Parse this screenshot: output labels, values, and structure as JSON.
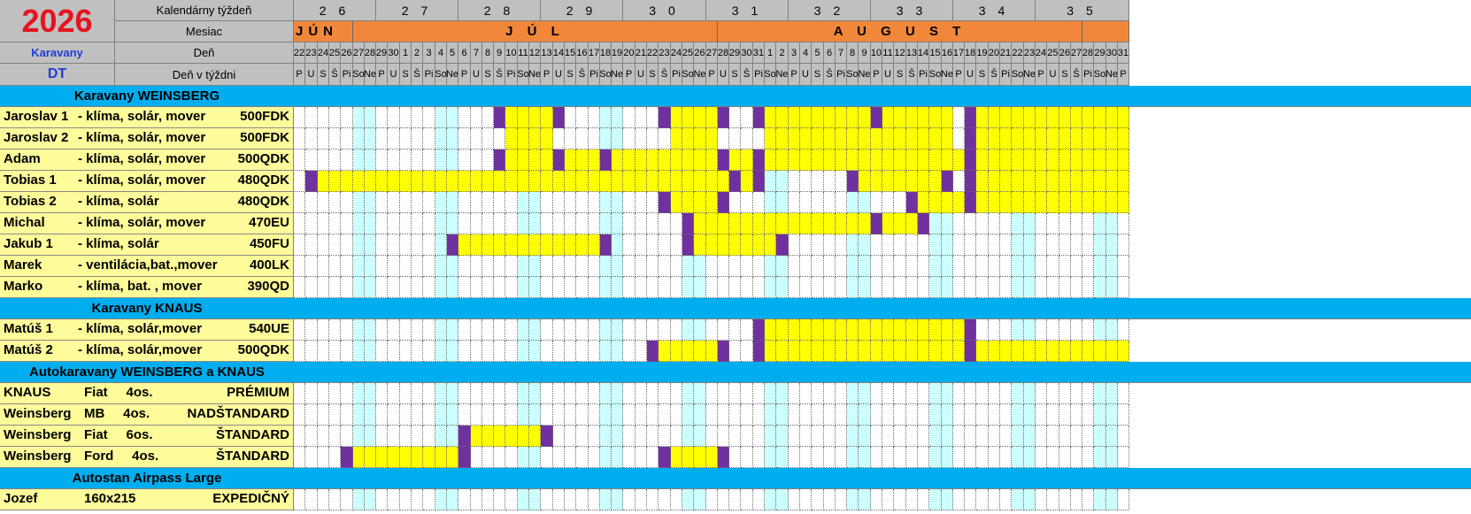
{
  "header": {
    "year": "2026",
    "labels": {
      "week": "Kalendárny týždeň",
      "month": "Mesiac",
      "day": "Deň",
      "weekday": "Deň v týždni",
      "category": "Karavany",
      "brand": "DT"
    }
  },
  "calendar": {
    "start_day": 22,
    "start_weekday_index": 0,
    "day_count": 71,
    "weekday_labels": [
      "P",
      "U",
      "S",
      "Š",
      "Pi",
      "So",
      "Ne"
    ],
    "weeks": [
      {
        "label": "2 6",
        "start": 0,
        "span": 7
      },
      {
        "label": "2 7",
        "start": 7,
        "span": 7
      },
      {
        "label": "2 8",
        "start": 14,
        "span": 7
      },
      {
        "label": "2 9",
        "start": 21,
        "span": 7
      },
      {
        "label": "3 0",
        "start": 28,
        "span": 7
      },
      {
        "label": "3 1",
        "start": 35,
        "span": 7
      },
      {
        "label": "3 2",
        "start": 42,
        "span": 7
      },
      {
        "label": "3 3",
        "start": 49,
        "span": 7
      },
      {
        "label": "3 4",
        "start": 56,
        "span": 7
      },
      {
        "label": "3 5",
        "start": 63,
        "span": 8
      }
    ],
    "months": [
      {
        "label": "JÚN",
        "start": 0,
        "span": 5,
        "align": "left"
      },
      {
        "label": "J Ú L",
        "start": 5,
        "span": 31,
        "align": "center"
      },
      {
        "label": "A U G U S T",
        "start": 36,
        "span": 31,
        "align": "center"
      },
      {
        "label": "",
        "start": 67,
        "span": 4,
        "align": "center"
      }
    ]
  },
  "rows": [
    {
      "type": "section",
      "title": "Karavany  WEINSBERG"
    },
    {
      "type": "item",
      "name": "Jaroslav 1",
      "features": "- klíma, solár, mover",
      "code": "500FDK",
      "bookings": [
        [
          17,
          17,
          "p"
        ],
        [
          18,
          21,
          "y"
        ],
        [
          22,
          22,
          "p"
        ],
        [
          31,
          31,
          "p"
        ],
        [
          32,
          35,
          "y"
        ],
        [
          36,
          36,
          "p"
        ],
        [
          39,
          39,
          "p"
        ],
        [
          40,
          48,
          "y"
        ],
        [
          49,
          49,
          "p"
        ],
        [
          50,
          55,
          "y"
        ],
        [
          57,
          57,
          "p"
        ],
        [
          58,
          70,
          "y"
        ]
      ]
    },
    {
      "type": "item",
      "name": "Jaroslav 2",
      "features": "- klíma, solár, mover",
      "code": "500FDK",
      "bookings": [
        [
          18,
          21,
          "y"
        ],
        [
          32,
          35,
          "y"
        ],
        [
          40,
          55,
          "y"
        ],
        [
          57,
          57,
          "p"
        ],
        [
          58,
          70,
          "y"
        ]
      ]
    },
    {
      "type": "item",
      "name": "Adam",
      "features": "- klíma, solár, mover",
      "code": "500QDK",
      "bookings": [
        [
          17,
          17,
          "p"
        ],
        [
          18,
          21,
          "y"
        ],
        [
          22,
          22,
          "p"
        ],
        [
          23,
          25,
          "y"
        ],
        [
          26,
          26,
          "p"
        ],
        [
          27,
          35,
          "y"
        ],
        [
          36,
          36,
          "p"
        ],
        [
          37,
          38,
          "y"
        ],
        [
          39,
          39,
          "p"
        ],
        [
          40,
          56,
          "y"
        ],
        [
          57,
          57,
          "p"
        ],
        [
          58,
          70,
          "y"
        ]
      ]
    },
    {
      "type": "item",
      "name": "Tobias 1",
      "features": "- klíma, solár, mover",
      "code": "480QDK",
      "bookings": [
        [
          1,
          1,
          "p"
        ],
        [
          2,
          36,
          "y"
        ],
        [
          37,
          37,
          "p"
        ],
        [
          38,
          38,
          "y"
        ],
        [
          39,
          39,
          "p"
        ],
        [
          47,
          47,
          "p"
        ],
        [
          48,
          54,
          "y"
        ],
        [
          55,
          55,
          "p"
        ],
        [
          57,
          57,
          "p"
        ],
        [
          58,
          70,
          "y"
        ]
      ]
    },
    {
      "type": "item",
      "name": "Tobias 2",
      "features": "- klíma, solár",
      "code": "480QDK",
      "bookings": [
        [
          31,
          31,
          "p"
        ],
        [
          32,
          35,
          "y"
        ],
        [
          36,
          36,
          "p"
        ],
        [
          52,
          52,
          "p"
        ],
        [
          53,
          56,
          "y"
        ],
        [
          57,
          57,
          "p"
        ],
        [
          58,
          70,
          "y"
        ]
      ]
    },
    {
      "type": "item",
      "name": "Michal",
      "features": "- klíma, solár, mover",
      "code": "470EU",
      "bookings": [
        [
          33,
          33,
          "p"
        ],
        [
          34,
          48,
          "y"
        ],
        [
          49,
          49,
          "p"
        ],
        [
          50,
          52,
          "y"
        ],
        [
          53,
          53,
          "p"
        ]
      ]
    },
    {
      "type": "item",
      "name": "Jakub 1",
      "features": "- klíma, solár",
      "code": "450FU",
      "bookings": [
        [
          13,
          13,
          "p"
        ],
        [
          14,
          25,
          "y"
        ],
        [
          26,
          26,
          "p"
        ],
        [
          33,
          33,
          "p"
        ],
        [
          34,
          40,
          "y"
        ],
        [
          41,
          41,
          "p"
        ]
      ]
    },
    {
      "type": "item",
      "name": "Marek",
      "features": "- ventilácia,bat.,mover",
      "code": "400LK",
      "bookings": []
    },
    {
      "type": "item",
      "name": "Marko",
      "features": "- klíma, bat. , mover",
      "code": "390QD",
      "bookings": []
    },
    {
      "type": "section",
      "title": "Karavany  KNAUS"
    },
    {
      "type": "item",
      "name": "Matúš 1",
      "features": "- klíma, solár,mover",
      "code": "540UE",
      "bookings": [
        [
          39,
          39,
          "p"
        ],
        [
          40,
          56,
          "y"
        ],
        [
          57,
          57,
          "p"
        ]
      ]
    },
    {
      "type": "item",
      "name": "Matúš 2",
      "features": "- klíma, solár,mover",
      "code": "500QDK",
      "bookings": [
        [
          30,
          30,
          "p"
        ],
        [
          31,
          35,
          "y"
        ],
        [
          36,
          36,
          "p"
        ],
        [
          39,
          39,
          "p"
        ],
        [
          40,
          56,
          "y"
        ],
        [
          57,
          57,
          "p"
        ],
        [
          58,
          70,
          "y"
        ]
      ]
    },
    {
      "type": "section",
      "title": "Autokaravany  WEINSBERG a KNAUS"
    },
    {
      "type": "item",
      "name": "KNAUS",
      "features": "Fiat     4os.",
      "code": "PRÉMIUM",
      "bookings": []
    },
    {
      "type": "item",
      "name": "Weinsberg",
      "features": "MB     4os.",
      "code": "NADŠTANDARD",
      "bookings": []
    },
    {
      "type": "item",
      "name": "Weinsberg",
      "features": "Fiat     6os.",
      "code": "ŠTANDARD",
      "bookings": [
        [
          14,
          14,
          "p"
        ],
        [
          15,
          20,
          "y"
        ],
        [
          21,
          21,
          "p"
        ]
      ]
    },
    {
      "type": "item",
      "name": "Weinsberg",
      "features": "Ford     4os.",
      "code": "ŠTANDARD",
      "bookings": [
        [
          4,
          4,
          "p"
        ],
        [
          5,
          13,
          "y"
        ],
        [
          14,
          14,
          "p"
        ],
        [
          31,
          31,
          "p"
        ],
        [
          32,
          35,
          "y"
        ],
        [
          36,
          36,
          "p"
        ]
      ]
    },
    {
      "type": "section",
      "title": "Autostan Airpass Large"
    },
    {
      "type": "item",
      "name": "Jozef",
      "features": "160x215",
      "code": "EXPEDIČNÝ",
      "bookings": []
    }
  ],
  "colors": {
    "free": "#ffffff",
    "weekend": "#ccffff",
    "booked": "#ffff00",
    "changeover": "#7030a0",
    "section": "#00adee",
    "month": "#f0873a",
    "header": "#c0c0c0",
    "label": "#fefb9a",
    "year": "#e4151f"
  }
}
